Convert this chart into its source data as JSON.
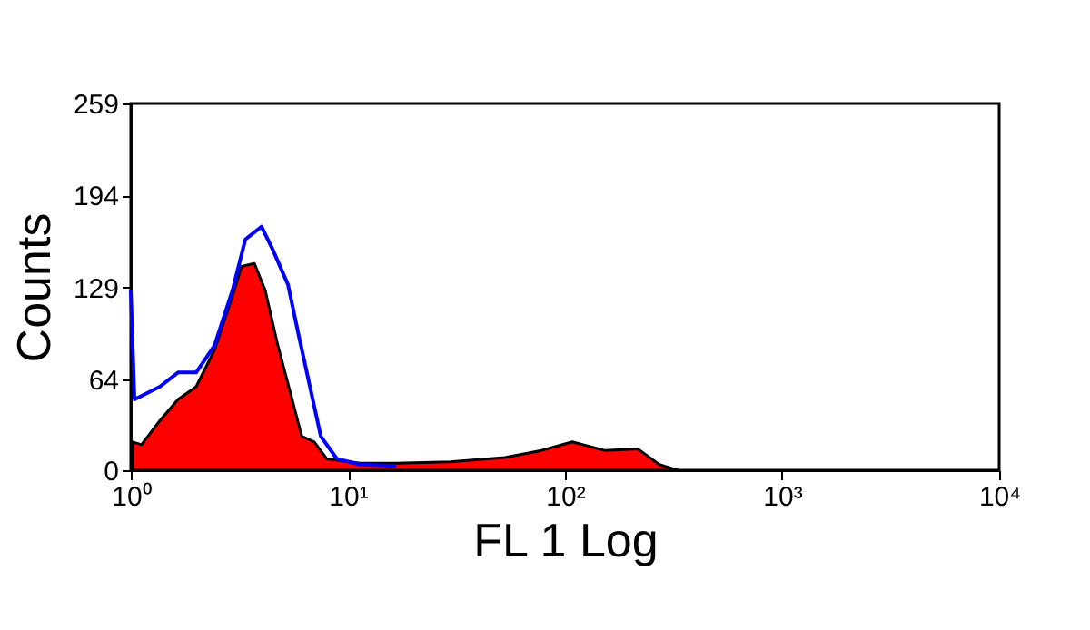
{
  "chart_data": {
    "type": "area",
    "xlabel": "FL 1 Log",
    "ylabel": "Counts",
    "log": "x",
    "grid": false,
    "legend": false,
    "xlim": [
      1,
      10000
    ],
    "xticks": [
      {
        "value": 1,
        "label": "10⁰"
      },
      {
        "value": 10,
        "label": "10¹"
      },
      {
        "value": 100,
        "label": "10²"
      },
      {
        "value": 1000,
        "label": "10³"
      },
      {
        "value": 10000,
        "label": "10⁴"
      }
    ],
    "ylim": [
      0,
      259
    ],
    "yticks": [
      0,
      64,
      129,
      194,
      259
    ],
    "series": [
      {
        "color": "#ff0000",
        "x": [
          1.02,
          1.12,
          1.36,
          1.65,
          2.0,
          2.43,
          2.94,
          3.24,
          3.71,
          4.16,
          4.76,
          5.45,
          6.13,
          7.0,
          8.0,
          11.4,
          16.7,
          29.6,
          52.8,
          78,
          108,
          152,
          217,
          272,
          330
        ],
        "values": [
          20,
          18,
          35,
          50,
          59,
          85,
          123,
          144,
          146,
          127,
          88,
          54,
          24,
          20,
          8,
          5,
          5,
          6,
          9,
          14,
          20,
          14,
          15,
          4,
          0
        ]
      },
      {
        "type": "line",
        "color": "#0000ff",
        "x": [
          1.0,
          1.04,
          1.36,
          1.65,
          2.0,
          2.43,
          2.94,
          3.37,
          4.0,
          4.5,
          5.3,
          5.9,
          6.6,
          7.5,
          8.9,
          11.4,
          16.7
        ],
        "values": [
          127,
          50,
          59,
          69,
          69,
          88,
          127,
          163,
          172,
          156,
          131,
          97,
          63,
          24,
          8,
          4,
          3
        ]
      }
    ]
  }
}
